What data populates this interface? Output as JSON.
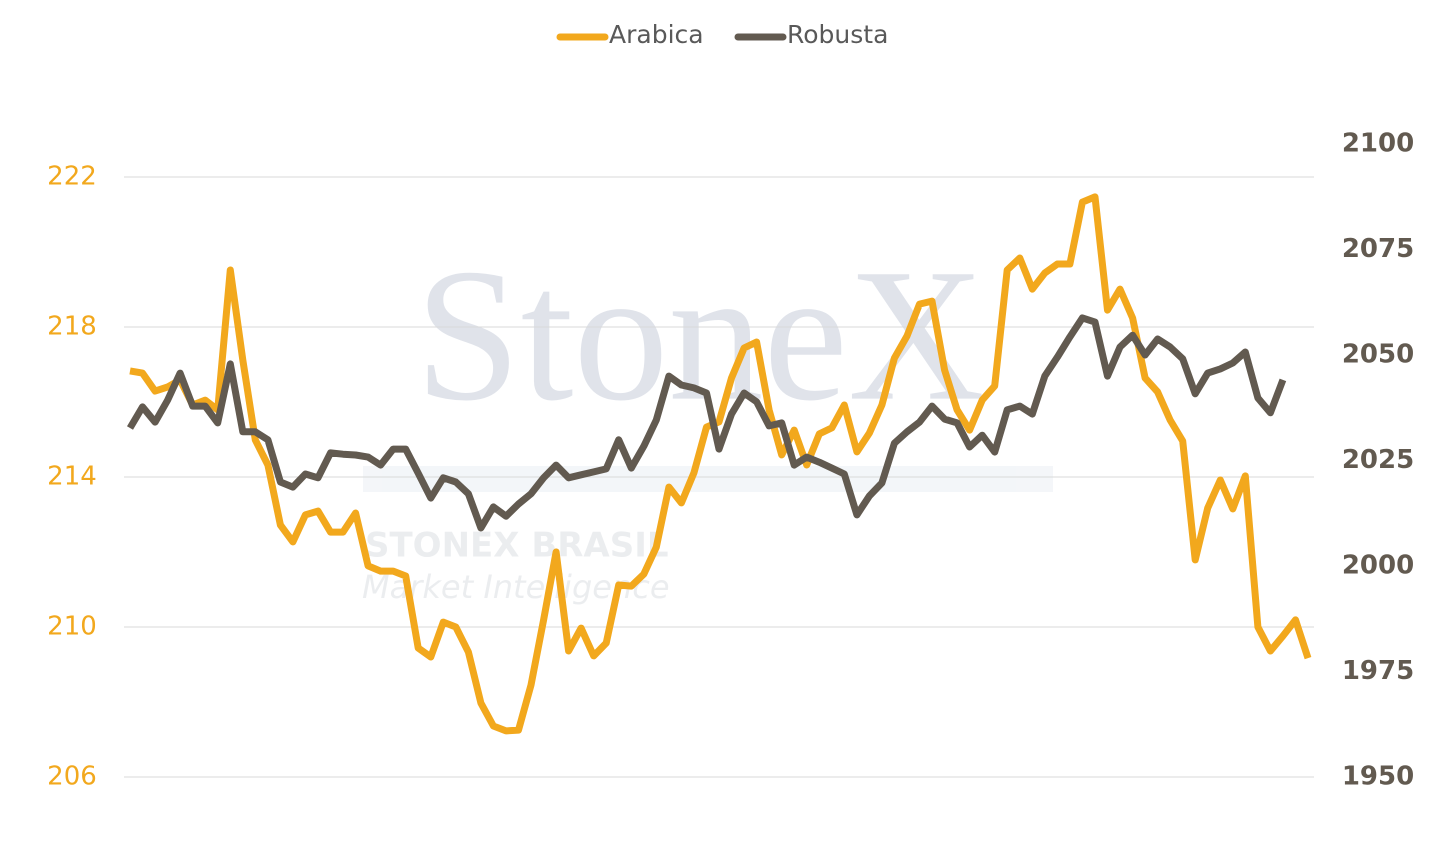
{
  "chart_data": {
    "type": "line",
    "watermark": [
      "StoneX",
      "STONEX BRASIL",
      "Market Intelligence"
    ],
    "legend": "top",
    "grid": true,
    "ylim": [
      206,
      222.88
    ],
    "yticks": [
      206,
      210,
      214,
      218,
      222
    ],
    "y2lim": [
      1950,
      2100
    ],
    "y2ticks": [
      1950,
      1975,
      2000,
      2025,
      2050,
      2075,
      2100
    ],
    "series": [
      {
        "name": "Arabica",
        "color": "#f2a81d",
        "values": [
          216.83,
          216.77,
          216.29,
          216.4,
          216.59,
          215.92,
          216.05,
          215.79,
          219.52,
          217.12,
          214.99,
          214.32,
          212.72,
          212.27,
          212.99,
          213.09,
          212.53,
          212.53,
          213.04,
          211.63,
          211.49,
          211.49,
          211.36,
          209.44,
          209.2,
          210.13,
          210.0,
          209.33,
          207.97,
          207.36,
          207.23,
          207.25,
          208.45,
          210.19,
          212.0,
          209.36,
          209.97,
          209.23,
          209.57,
          211.12,
          211.09,
          211.41,
          212.13,
          213.73,
          213.31,
          214.11,
          215.33,
          215.47,
          216.64,
          217.44,
          217.6,
          215.79,
          214.59,
          215.25,
          214.32,
          215.15,
          215.31,
          215.92,
          214.67,
          215.17,
          215.92,
          217.17,
          217.76,
          218.61,
          218.69,
          216.85,
          215.79,
          215.25,
          216.05,
          216.43,
          219.52,
          219.84,
          219.01,
          219.44,
          219.68,
          219.68,
          221.33,
          221.47,
          218.45,
          219.01,
          218.24,
          216.64,
          216.27,
          215.52,
          214.96,
          211.79,
          213.17,
          213.92,
          213.15,
          214.03,
          210.0,
          209.36,
          209.76,
          210.19,
          209.17
        ]
      },
      {
        "name": "Robusta",
        "color": "#625a50",
        "axis": "y2",
        "values": [
          2032.7,
          2037.7,
          2034.1,
          2039.3,
          2045.7,
          2037.9,
          2037.9,
          2033.9,
          2047.9,
          2031.8,
          2031.8,
          2029.9,
          2019.9,
          2018.7,
          2021.8,
          2020.9,
          2026.8,
          2026.5,
          2026.3,
          2025.8,
          2023.9,
          2027.7,
          2027.7,
          2022.0,
          2016.1,
          2020.9,
          2019.9,
          2017.1,
          2009.0,
          2014.0,
          2011.8,
          2014.7,
          2017.1,
          2020.9,
          2023.9,
          2020.9,
          2021.6,
          2022.3,
          2023.0,
          2029.9,
          2023.2,
          2028.4,
          2034.6,
          2045.0,
          2042.9,
          2042.2,
          2041.0,
          2027.7,
          2036.0,
          2041.0,
          2038.9,
          2033.2,
          2033.9,
          2023.9,
          2025.8,
          2024.6,
          2023.2,
          2021.8,
          2012.1,
          2016.6,
          2019.7,
          2029.1,
          2031.8,
          2034.1,
          2037.9,
          2034.8,
          2033.9,
          2028.2,
          2031.0,
          2027.0,
          2037.0,
          2037.9,
          2036.0,
          2045.0,
          2049.5,
          2054.3,
          2058.8,
          2057.8,
          2045.0,
          2051.9,
          2054.7,
          2050.0,
          2053.8,
          2051.9,
          2049.1,
          2040.8,
          2045.7,
          2046.7,
          2048.1,
          2050.7,
          2039.8,
          2036.3,
          2044.1,
          null,
          null
        ]
      }
    ]
  }
}
